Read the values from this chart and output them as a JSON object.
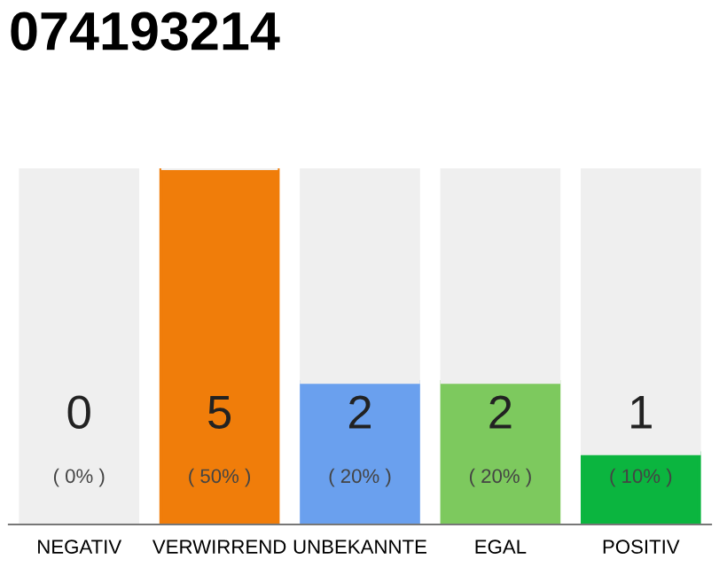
{
  "chart_data": {
    "type": "bar",
    "title": "074193214",
    "categories": [
      "NEGATIV",
      "VERWIRREND",
      "UNBEKANNTE",
      "EGAL",
      "POSITIV"
    ],
    "stacked": true,
    "series": [
      {
        "colors": [
          "#888888",
          "#f07d0a",
          "#6aa0ee",
          "#7dc95e",
          "#0bb53f"
        ],
        "values": [
          0,
          5,
          2,
          2,
          1
        ],
        "value_labels": [
          "0\n( 0% )",
          "5\n( 50% )",
          "2\n( 20% )",
          "2\n( 20% )",
          "1\n( 10% )"
        ]
      },
      {
        "color": "#efefef",
        "values": [
          5,
          0,
          3,
          3,
          4
        ]
      }
    ],
    "grid": false,
    "legend": false
  }
}
